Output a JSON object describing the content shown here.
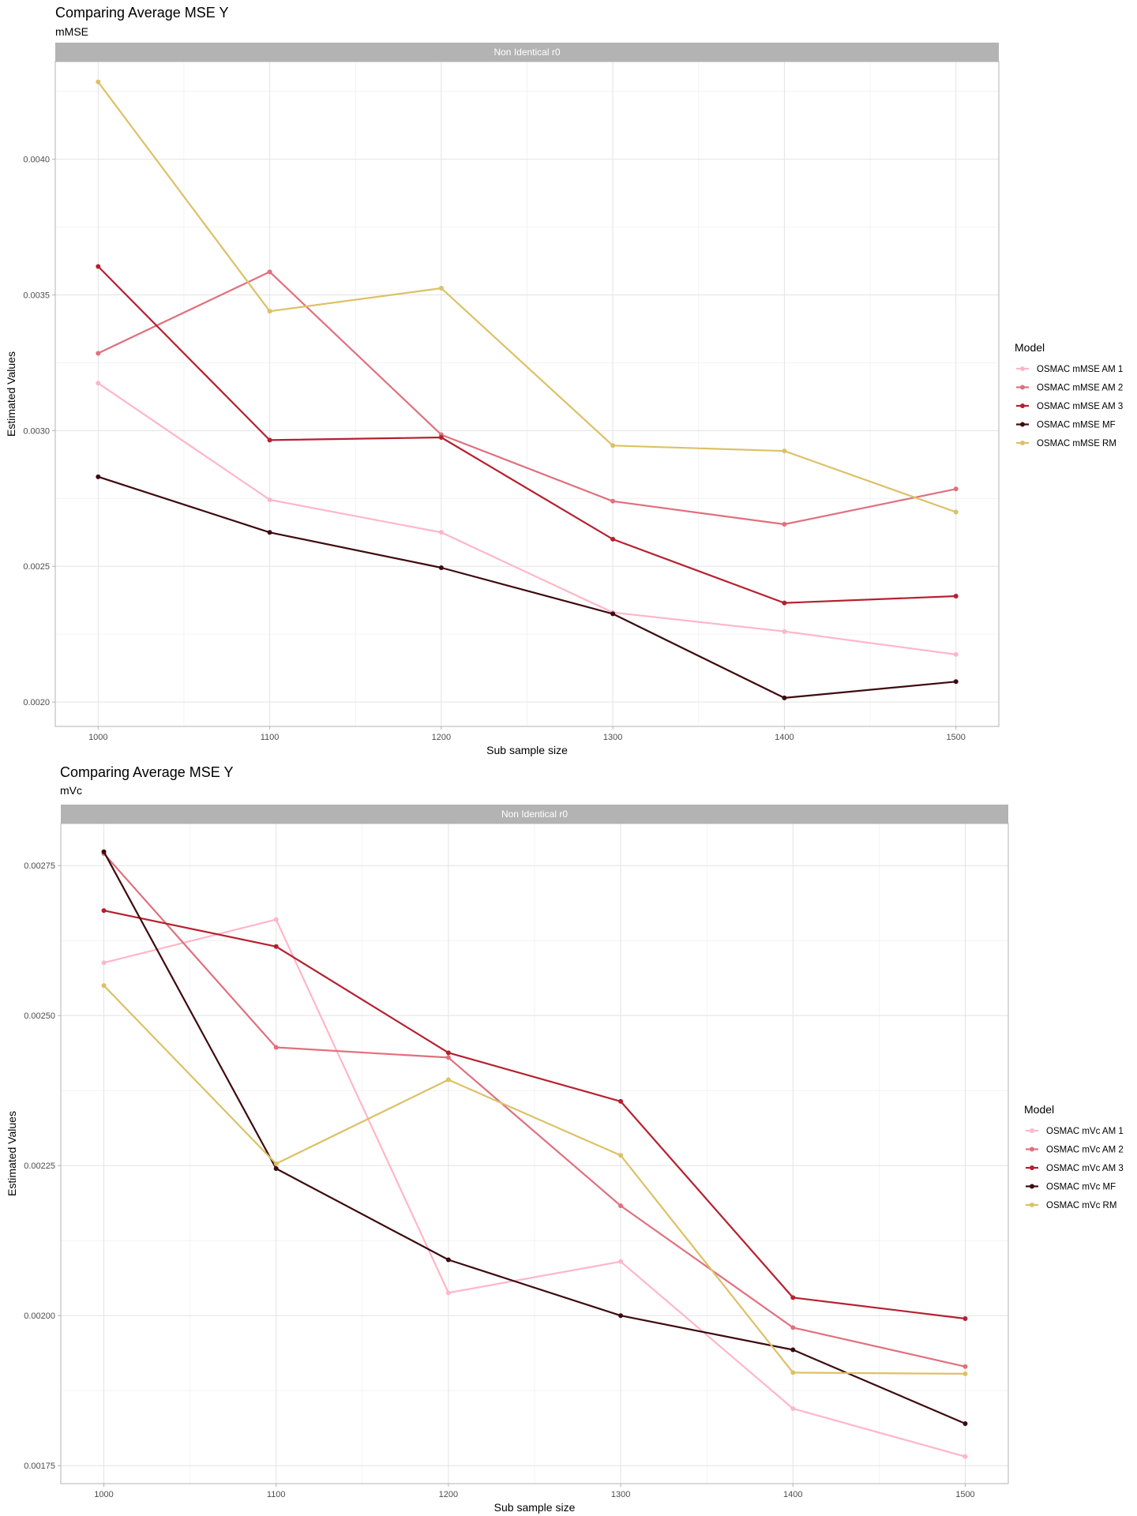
{
  "chart_data": [
    {
      "type": "line",
      "title": "Comparing Average MSE Y",
      "subtitle": "mMSE",
      "facet": "Non Identical r0",
      "xlabel": "Sub sample size",
      "ylabel": "Estimated Values",
      "legend_title": "Model",
      "legend_position": "right",
      "grid": true,
      "x": [
        1000,
        1100,
        1200,
        1300,
        1400,
        1500
      ],
      "xticks": [
        1000,
        1100,
        1200,
        1300,
        1400,
        1500
      ],
      "xlim": [
        975,
        1525
      ],
      "yticks": [
        0.002,
        0.0025,
        0.003,
        0.0035,
        0.004
      ],
      "ytick_labels": [
        "0.0020",
        "0.0025",
        "0.0030",
        "0.0035",
        "0.0040"
      ],
      "ylim": [
        0.00191,
        0.00436
      ],
      "series": [
        {
          "name": "OSMAC mMSE AM 1",
          "color": "#ffb6c8",
          "values": [
            0.003175,
            0.002745,
            0.002625,
            0.00233,
            0.00226,
            0.002175
          ]
        },
        {
          "name": "OSMAC mMSE AM 2",
          "color": "#e0707e",
          "values": [
            0.003285,
            0.003585,
            0.002985,
            0.00274,
            0.002655,
            0.002785
          ]
        },
        {
          "name": "OSMAC mMSE AM 3",
          "color": "#b5202e",
          "values": [
            0.003605,
            0.002965,
            0.002975,
            0.0026,
            0.002365,
            0.00239
          ]
        },
        {
          "name": "OSMAC mMSE MF",
          "color": "#3d0a0f",
          "values": [
            0.00283,
            0.002625,
            0.002495,
            0.002325,
            0.002015,
            0.002075
          ]
        },
        {
          "name": "OSMAC mMSE RM",
          "color": "#dcc165",
          "values": [
            0.004285,
            0.00344,
            0.003525,
            0.002945,
            0.002925,
            0.0027
          ]
        }
      ]
    },
    {
      "type": "line",
      "title": "Comparing Average MSE Y",
      "subtitle": "mVc",
      "facet": "Non Identical r0",
      "xlabel": "Sub sample size",
      "ylabel": "Estimated Values",
      "legend_title": "Model",
      "legend_position": "right",
      "grid": true,
      "x": [
        1000,
        1100,
        1200,
        1300,
        1400,
        1500
      ],
      "xticks": [
        1000,
        1100,
        1200,
        1300,
        1400,
        1500
      ],
      "xlim": [
        975,
        1525
      ],
      "yticks": [
        0.00175,
        0.002,
        0.00225,
        0.0025,
        0.00275
      ],
      "ytick_labels": [
        "0.00175",
        "0.00200",
        "0.00225",
        "0.00250",
        "0.00275"
      ],
      "ylim": [
        0.00172,
        0.00282
      ],
      "series": [
        {
          "name": "OSMAC mVc AM 1",
          "color": "#ffb6c8",
          "values": [
            0.002588,
            0.00266,
            0.002038,
            0.00209,
            0.001845,
            0.001765
          ]
        },
        {
          "name": "OSMAC mVc AM 2",
          "color": "#e0707e",
          "values": [
            0.00277,
            0.002447,
            0.00243,
            0.002183,
            0.00198,
            0.001915
          ]
        },
        {
          "name": "OSMAC mVc AM 3",
          "color": "#b5202e",
          "values": [
            0.002675,
            0.002615,
            0.002438,
            0.002357,
            0.00203,
            0.001995
          ]
        },
        {
          "name": "OSMAC mVc MF",
          "color": "#3d0a0f",
          "values": [
            0.002773,
            0.002245,
            0.002093,
            0.002,
            0.001943,
            0.00182
          ]
        },
        {
          "name": "OSMAC mVc RM",
          "color": "#dcc165",
          "values": [
            0.00255,
            0.002253,
            0.002393,
            0.002267,
            0.001905,
            0.001903
          ]
        }
      ]
    }
  ]
}
